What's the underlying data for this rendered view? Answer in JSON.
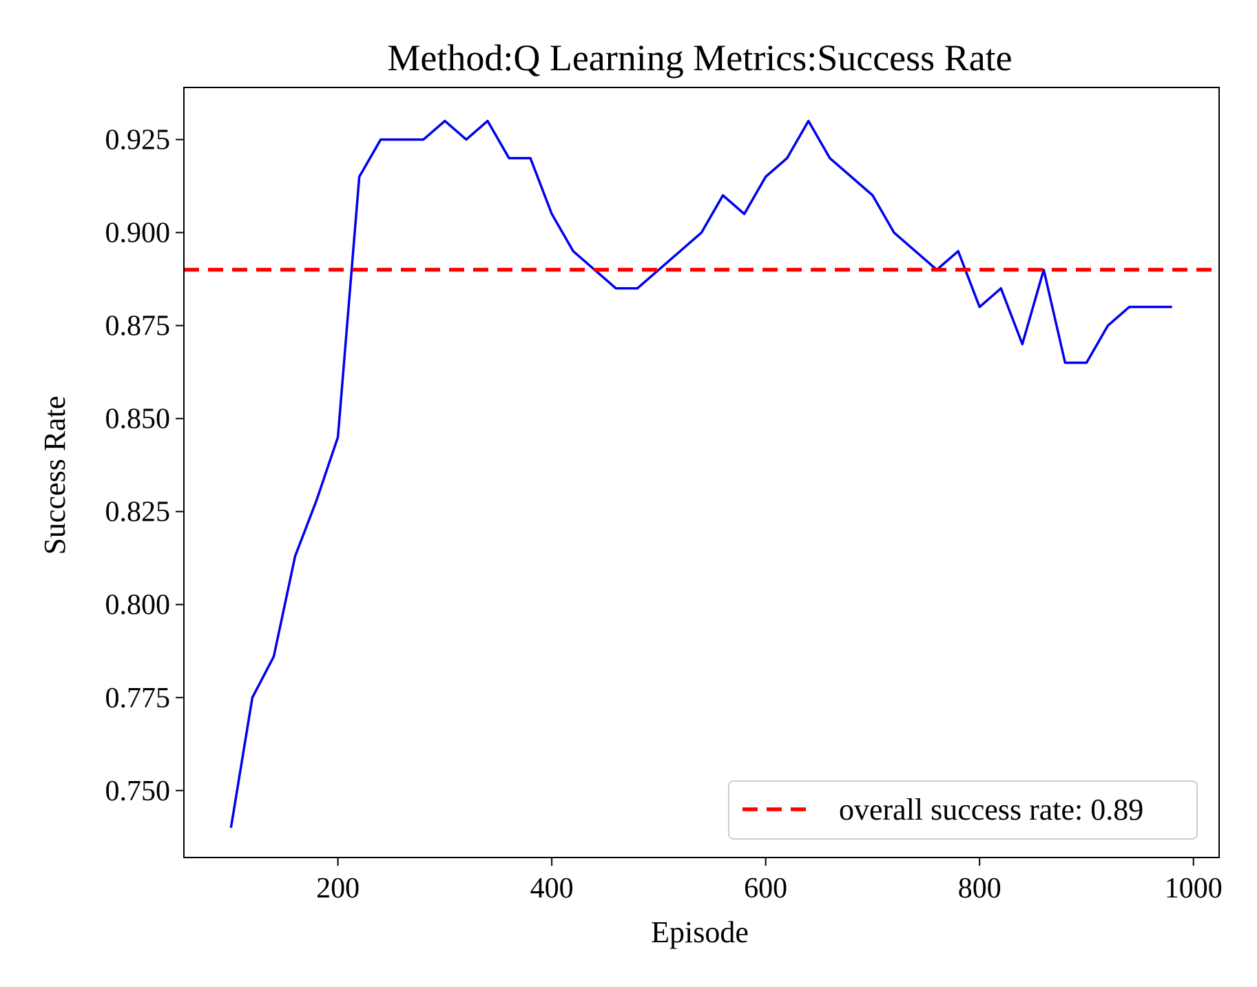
{
  "chart_data": {
    "type": "line",
    "title": "Method:Q Learning   Metrics:Success Rate",
    "xlabel": "Episode",
    "ylabel": "Success Rate",
    "xlim": [
      56,
      1024
    ],
    "ylim": [
      0.732,
      0.939
    ],
    "x_ticks": [
      200,
      400,
      600,
      800,
      1000
    ],
    "x_tick_labels": [
      "200",
      "400",
      "600",
      "800",
      "1000"
    ],
    "y_ticks": [
      0.75,
      0.775,
      0.8,
      0.825,
      0.85,
      0.875,
      0.9,
      0.925
    ],
    "y_tick_labels": [
      "0.750",
      "0.775",
      "0.800",
      "0.825",
      "0.850",
      "0.875",
      "0.900",
      "0.925"
    ],
    "grid": false,
    "legend_position": "bottom-right",
    "series": [
      {
        "color": "#0000ee",
        "x": [
          100,
          120,
          140,
          160,
          180,
          200,
          220,
          240,
          260,
          280,
          300,
          320,
          340,
          360,
          380,
          400,
          420,
          440,
          460,
          480,
          500,
          520,
          540,
          560,
          580,
          600,
          620,
          640,
          660,
          680,
          700,
          720,
          740,
          760,
          780,
          800,
          820,
          840,
          860,
          880,
          900,
          920,
          940,
          960,
          980
        ],
        "y": [
          0.74,
          0.775,
          0.786,
          0.813,
          0.828,
          0.845,
          0.915,
          0.925,
          0.925,
          0.925,
          0.93,
          0.925,
          0.93,
          0.92,
          0.92,
          0.905,
          0.895,
          0.89,
          0.885,
          0.885,
          0.89,
          0.895,
          0.9,
          0.91,
          0.905,
          0.915,
          0.92,
          0.93,
          0.92,
          0.915,
          0.91,
          0.9,
          0.895,
          0.89,
          0.895,
          0.88,
          0.885,
          0.87,
          0.89,
          0.865,
          0.865,
          0.875,
          0.88,
          0.88,
          0.88
        ]
      }
    ],
    "reference_line": {
      "label": "overall success rate: 0.89",
      "y": 0.89,
      "color": "#ff0000",
      "style": "dashed"
    }
  }
}
